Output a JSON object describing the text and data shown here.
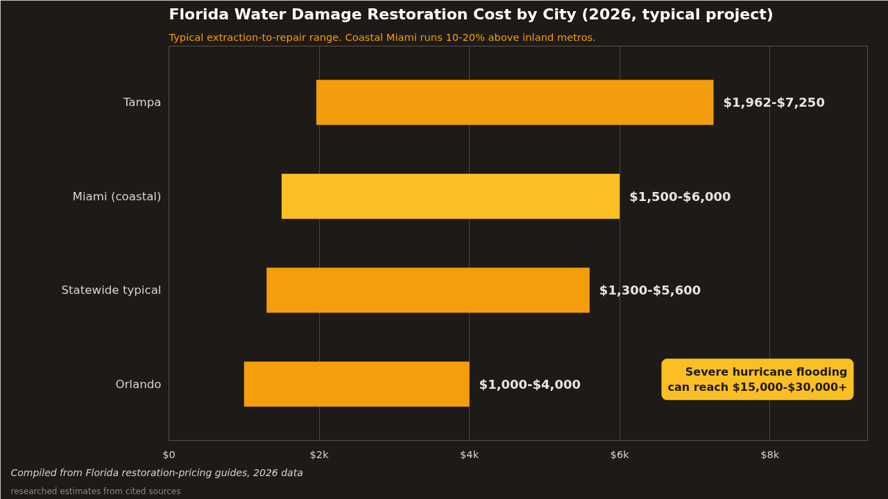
{
  "chart_data": {
    "type": "bar",
    "orientation": "horizontal",
    "title": "Florida Water Damage Restoration Cost by City  (2026, typical project)",
    "subtitle": "Typical extraction-to-repair range. Coastal Miami runs 10-20% above inland metros.",
    "categories": [
      "Tampa",
      "Miami (coastal)",
      "Statewide typical",
      "Orlando"
    ],
    "base": [
      1962,
      1500,
      1300,
      1000
    ],
    "values": [
      5288,
      4500,
      4300,
      3000
    ],
    "value_labels": [
      "$1,962-$7,250",
      "$1,500-$6,000",
      "$1,300-$5,600",
      "$1,000-$4,000"
    ],
    "colors": [
      "#f39c0e",
      "#fbbf24",
      "#f59e0b",
      "#f59e0b"
    ],
    "xlim": [
      0,
      9300
    ],
    "xticks": [
      {
        "value": 0,
        "label": "$0"
      },
      {
        "value": 2000,
        "label": "$2k"
      },
      {
        "value": 4000,
        "label": "$4k"
      },
      {
        "value": 6000,
        "label": "$6k"
      },
      {
        "value": 8000,
        "label": "$8k"
      }
    ],
    "grid": "x",
    "annotations": [
      "Severe hurricane flooding\ncan reach $15,000-$30,000+",
      "Compiled from Florida restoration-pricing guides, 2026 data",
      "researched estimates from cited sources"
    ]
  }
}
